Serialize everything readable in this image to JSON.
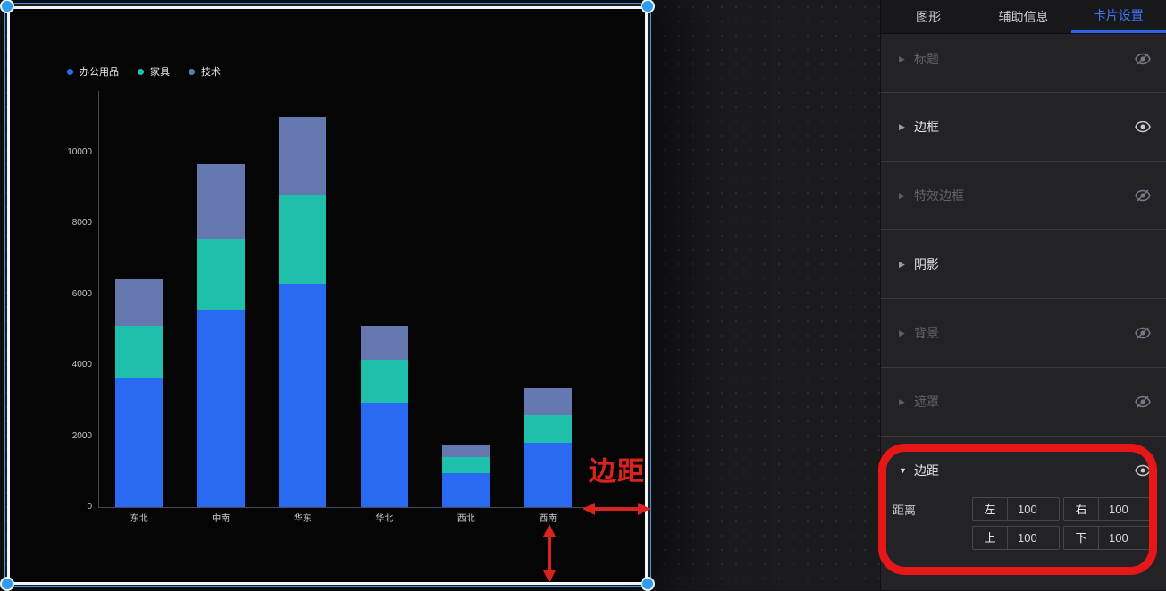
{
  "panel": {
    "tabs": [
      {
        "label": "图形",
        "active": false
      },
      {
        "label": "辅助信息",
        "active": false
      },
      {
        "label": "卡片设置",
        "active": true
      }
    ],
    "sections": [
      {
        "label": "标题",
        "enabled": false,
        "expanded": false,
        "eye": "off"
      },
      {
        "label": "边框",
        "enabled": true,
        "expanded": false,
        "eye": "on"
      },
      {
        "label": "特效边框",
        "enabled": false,
        "expanded": false,
        "eye": "off"
      },
      {
        "label": "阴影",
        "enabled": true,
        "expanded": false,
        "eye": "none"
      },
      {
        "label": "背景",
        "enabled": false,
        "expanded": false,
        "eye": "off"
      },
      {
        "label": "遮罩",
        "enabled": false,
        "expanded": false,
        "eye": "off"
      },
      {
        "label": "边距",
        "enabled": true,
        "expanded": true,
        "eye": "on"
      }
    ],
    "margin": {
      "label": "距离",
      "inputs": [
        {
          "label": "左",
          "value": "100"
        },
        {
          "label": "右",
          "value": "100"
        },
        {
          "label": "上",
          "value": "100"
        },
        {
          "label": "下",
          "value": "100"
        }
      ]
    }
  },
  "annotation": {
    "text": "边距",
    "color": "#d8231f",
    "ring_color": "#e81717"
  },
  "selection": {
    "frame_color": "#3e96e8",
    "handle_color": "#2f9cf0"
  },
  "chart_data": {
    "type": "bar",
    "stacked": true,
    "title": "",
    "categories": [
      "东北",
      "中南",
      "华东",
      "华北",
      "西北",
      "西南"
    ],
    "series": [
      {
        "name": "办公用品",
        "color": "#2a6af2",
        "values": [
          3650,
          5550,
          6300,
          2950,
          950,
          1800
        ]
      },
      {
        "name": "家具",
        "color": "#1ec0ac",
        "values": [
          1450,
          2000,
          2500,
          1200,
          450,
          800
        ]
      },
      {
        "name": "技术",
        "color": "#6478af",
        "values": [
          1350,
          2100,
          2200,
          950,
          350,
          750
        ]
      }
    ],
    "yticks": [
      0,
      2000,
      4000,
      6000,
      8000,
      10000
    ],
    "ylim": [
      0,
      11200
    ],
    "xlabel": "",
    "ylabel": "",
    "grid": false,
    "legend_position": "top-left",
    "background": "#050506"
  }
}
